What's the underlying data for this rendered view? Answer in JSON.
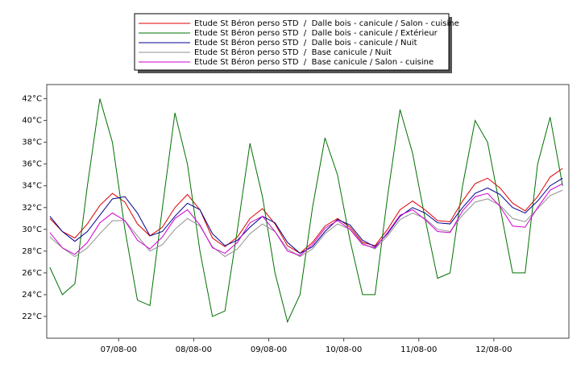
{
  "chart_data": {
    "type": "line",
    "x": [
      2,
      6,
      10,
      14,
      18,
      22,
      26,
      30,
      34,
      38,
      42,
      46,
      50,
      54,
      58,
      62,
      66,
      70,
      74,
      78,
      82,
      86,
      90,
      94,
      98,
      102,
      106,
      110,
      114,
      118,
      122,
      126,
      130,
      134,
      138,
      142,
      146,
      150,
      154,
      158,
      162,
      166
    ],
    "series": [
      {
        "name": "Etude St Béron perso STD  /  Dalle bois - canicule / Salon - cuisine",
        "color": "#e00000",
        "values": [
          31,
          29.8,
          29.2,
          30.5,
          32.2,
          33.3,
          32.5,
          30.5,
          29.4,
          30.2,
          32,
          33.2,
          31.8,
          29.2,
          28.4,
          29.3,
          31,
          31.9,
          30.5,
          28.5,
          27.8,
          28.8,
          30.3,
          31,
          30.2,
          28.8,
          28.5,
          30,
          31.8,
          32.6,
          31.8,
          30.8,
          30.7,
          32.6,
          34.2,
          34.7,
          33.8,
          32.4,
          31.7,
          33,
          34.8,
          35.6
        ]
      },
      {
        "name": "Etude St Béron perso STD  /  Dalle bois - canicule / Extérieur",
        "color": "#007000",
        "values": [
          26.5,
          24,
          25,
          34,
          42,
          38,
          30,
          23.5,
          23,
          32,
          40.7,
          36,
          28,
          22,
          22.5,
          30,
          37.9,
          33,
          26,
          21.5,
          24,
          32,
          38.4,
          35,
          29,
          24,
          24,
          33,
          41,
          37,
          31,
          25.5,
          26,
          34,
          40,
          38,
          32,
          26,
          26,
          36,
          40.3,
          34
        ]
      },
      {
        "name": "Etude St Béron perso STD  /  Dalle bois - canicule / Nuit",
        "color": "#000090",
        "values": [
          31.2,
          29.8,
          28.9,
          29.8,
          31.3,
          32.8,
          33,
          31.5,
          29.4,
          29.8,
          31.2,
          32.4,
          31.8,
          29.6,
          28.5,
          29,
          30.2,
          31.2,
          30.6,
          28.8,
          27.8,
          28.4,
          29.8,
          30.9,
          30.4,
          29,
          28.4,
          29.6,
          31.2,
          32,
          31.5,
          30.6,
          30.5,
          32,
          33.3,
          33.8,
          33.2,
          32,
          31.5,
          32.6,
          34,
          34.7
        ]
      },
      {
        "name": "Etude St Béron perso STD  /  Base canicule / Nuit",
        "color": "#909090",
        "values": [
          29.3,
          28.3,
          27.5,
          28.3,
          29.6,
          30.8,
          30.8,
          29.4,
          28,
          28.6,
          30,
          31,
          30.3,
          28.4,
          27.5,
          28.2,
          29.6,
          30.5,
          29.8,
          28.2,
          27.5,
          28.2,
          29.6,
          30.5,
          30,
          28.7,
          28.2,
          29.4,
          30.9,
          31.5,
          31,
          30,
          29.8,
          31.3,
          32.5,
          32.8,
          32.2,
          31,
          30.7,
          31.9,
          33.1,
          33.6
        ]
      },
      {
        "name": "Etude St Béron perso STD  /  Base canicule / Salon - cuisine",
        "color": "#d000d0",
        "values": [
          29.7,
          28.3,
          27.7,
          28.8,
          30.6,
          31.5,
          30.8,
          29,
          28.2,
          29.3,
          31,
          31.8,
          30.4,
          28.3,
          27.8,
          28.8,
          30.6,
          31.2,
          29.8,
          28,
          27.6,
          28.6,
          30.1,
          30.8,
          30,
          28.6,
          28.3,
          29.7,
          31.3,
          31.8,
          30.9,
          29.8,
          29.7,
          31.7,
          33,
          33.3,
          32.1,
          30.3,
          30.2,
          32,
          33.6,
          34.2
        ]
      }
    ],
    "xlim": [
      1,
      168
    ],
    "xticks": [
      {
        "value": 24,
        "label": "07/08-00"
      },
      {
        "value": 48,
        "label": "08/08-00"
      },
      {
        "value": 72,
        "label": "09/08-00"
      },
      {
        "value": 96,
        "label": "10/08-00"
      },
      {
        "value": 120,
        "label": "11/08-00"
      },
      {
        "value": 144,
        "label": "12/08-00"
      }
    ],
    "ylim": [
      20,
      43.3
    ],
    "yticks": [
      {
        "value": 22,
        "label": "22°C"
      },
      {
        "value": 24,
        "label": "24°C"
      },
      {
        "value": 26,
        "label": "26°C"
      },
      {
        "value": 28,
        "label": "28°C"
      },
      {
        "value": 30,
        "label": "30°C"
      },
      {
        "value": 32,
        "label": "32°C"
      },
      {
        "value": 34,
        "label": "34°C"
      },
      {
        "value": 36,
        "label": "36°C"
      },
      {
        "value": 38,
        "label": "38°C"
      },
      {
        "value": 40,
        "label": "40°C"
      },
      {
        "value": 42,
        "label": "42°C"
      }
    ]
  }
}
